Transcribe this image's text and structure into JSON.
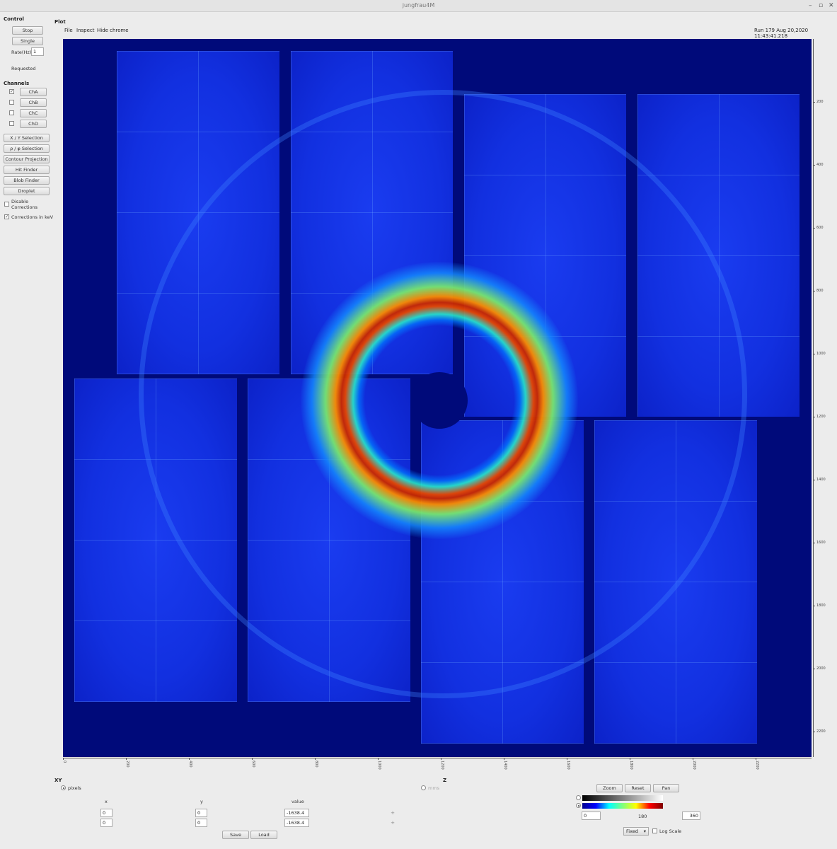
{
  "window": {
    "title": "jungfrau4M",
    "minimize": "–",
    "maximize": "▫",
    "close": "✕"
  },
  "control": {
    "title": "Control",
    "stop": "Stop",
    "single": "Single",
    "rate_label": "Rate(Hz)",
    "rate_value": "1",
    "requested": "Requested"
  },
  "channels": {
    "title": "Channels",
    "items": [
      {
        "label": "ChA",
        "checked": "✓"
      },
      {
        "label": "ChB",
        "checked": ""
      },
      {
        "label": "ChC",
        "checked": ""
      },
      {
        "label": "ChD",
        "checked": ""
      }
    ]
  },
  "tools": {
    "items": [
      "X / Y Selection",
      "ρ / φ Selection",
      "Contour Projection",
      "Hit Finder",
      "Blob Finder",
      "Droplet"
    ]
  },
  "options": {
    "disable_corrections": "Disable\nCorrections",
    "disable_line1": "Disable",
    "disable_line2": "Corrections",
    "disable_checked": "",
    "corrections_kev": "Corrections in keV",
    "kev_checked": "✓"
  },
  "plot": {
    "title": "Plot",
    "menu": [
      "File",
      "Inspect",
      "Hide chrome"
    ],
    "run_info": "Run 179 Aug 20,2020 11:43:41.218"
  },
  "axes": {
    "right_ticks": [
      "200",
      "400",
      "600",
      "800",
      "1000",
      "1200",
      "1400",
      "1600",
      "1800",
      "2000",
      "2200"
    ],
    "bottom_ticks": [
      "0",
      "200",
      "400",
      "600",
      "800",
      "1000",
      "1200",
      "1400",
      "1600",
      "1800",
      "2000",
      "2200"
    ]
  },
  "xy": {
    "title": "XY",
    "pixels": "pixels",
    "mms": "mms",
    "col_x": "x",
    "col_y": "y",
    "col_value": "value",
    "rows": [
      {
        "x": "0",
        "y": "0",
        "value": "-1638.4"
      },
      {
        "x": "0",
        "y": "0",
        "value": "-1638.4"
      }
    ],
    "save": "Save",
    "load": "Load",
    "plus": "+"
  },
  "z": {
    "title": "Z",
    "zoom": "Zoom",
    "reset": "Reset",
    "pan": "Pan",
    "min": "0",
    "mid": "180",
    "max": "360",
    "mode": "Fixed",
    "log_scale": "Log Scale",
    "colormap_gray": "#000000",
    "colormap_jet": "#0000ff"
  }
}
